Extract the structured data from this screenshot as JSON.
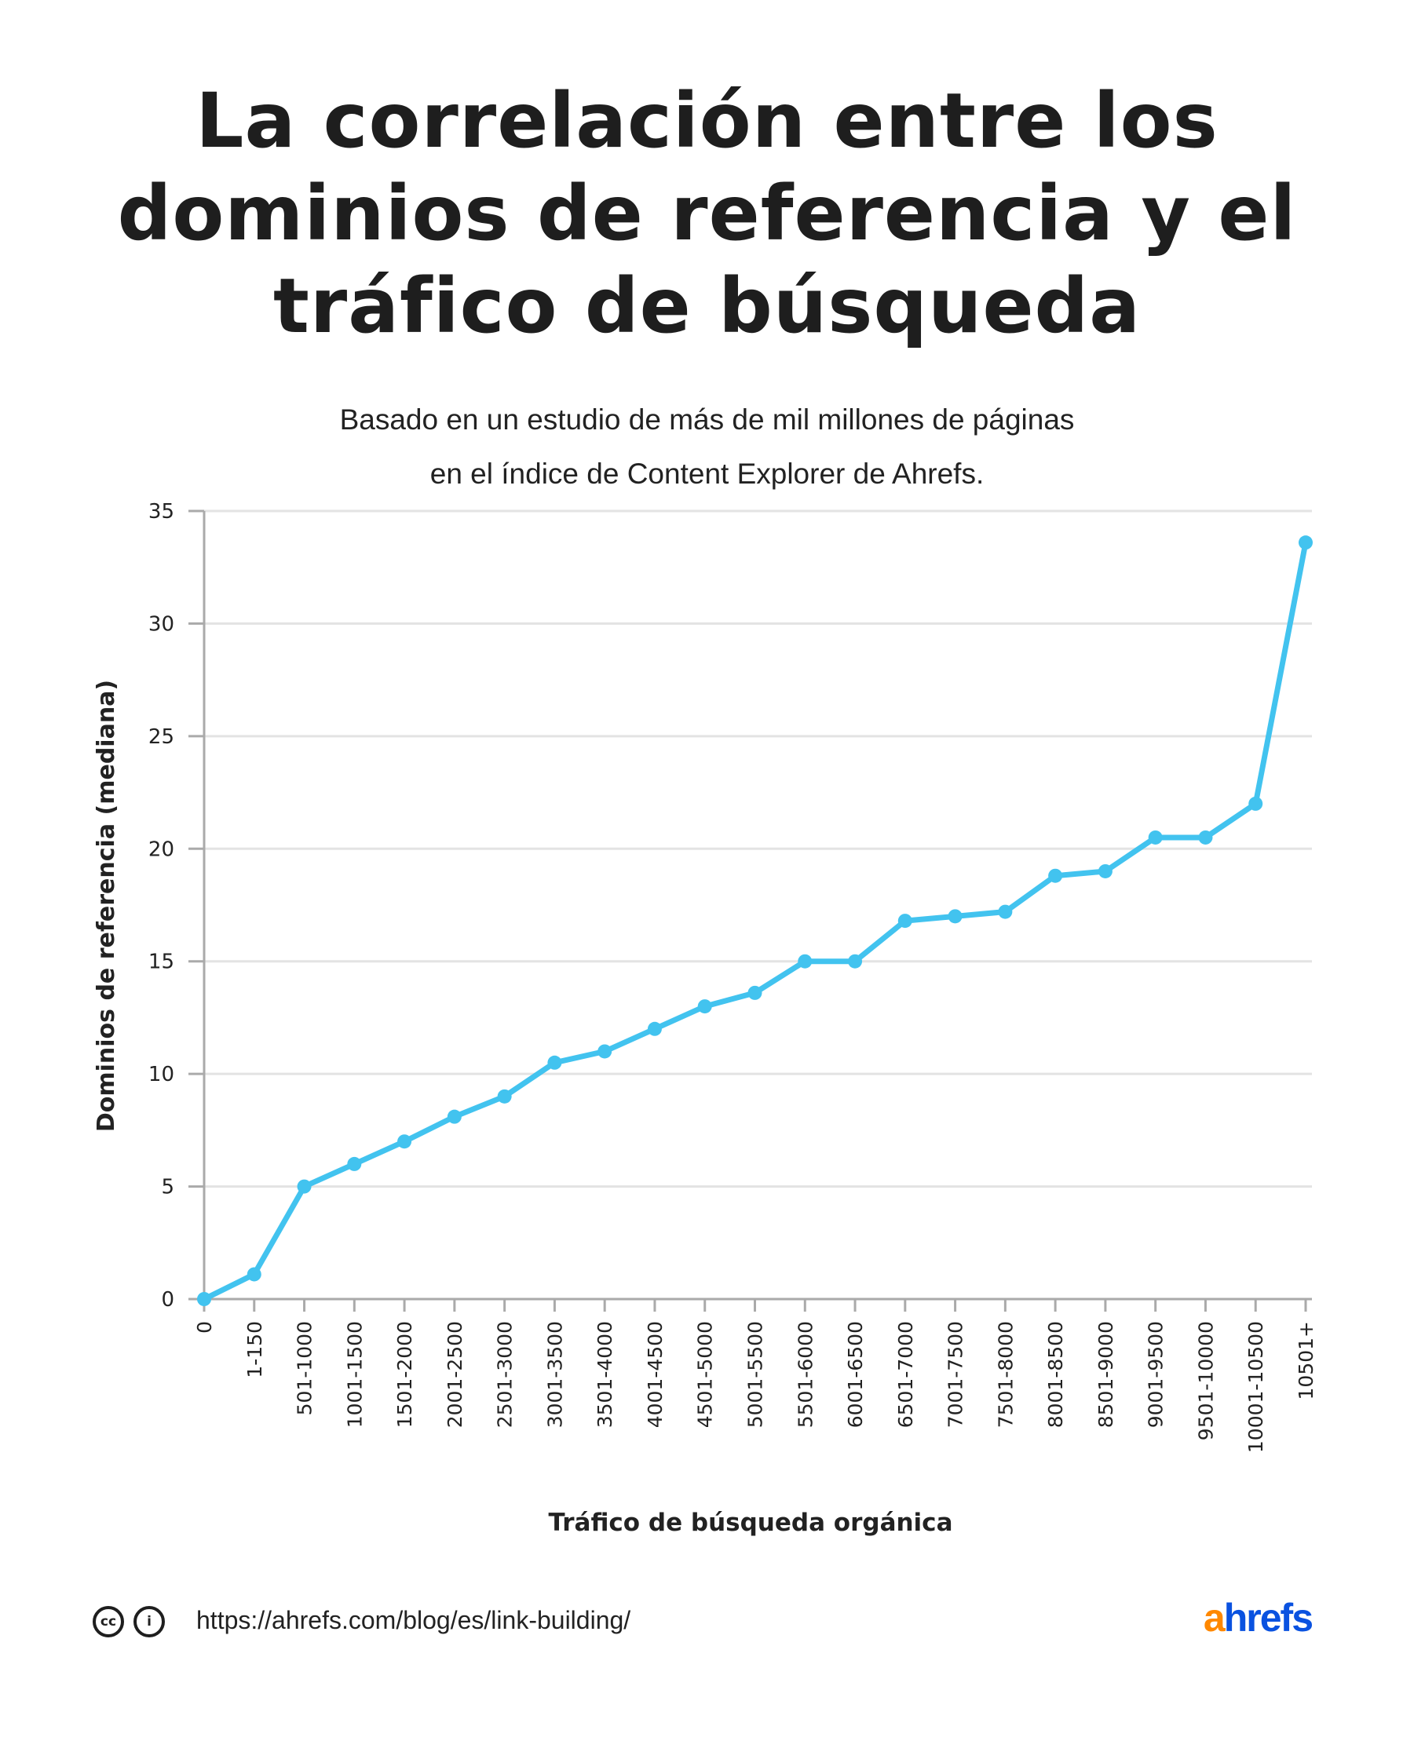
{
  "chart_data": {
    "type": "line",
    "title": "La correlación entre los dominios de referencia y el tráfico de búsqueda",
    "subtitle": [
      "Basado en un estudio de más de mil millones de páginas",
      "en el índice de Content Explorer de Ahrefs."
    ],
    "xlabel": "Tráfico de búsqueda orgánica",
    "ylabel": "Dominios de referencia (mediana)",
    "ylim": [
      0,
      35
    ],
    "yticks": [
      0,
      5,
      10,
      15,
      20,
      25,
      30,
      35
    ],
    "grid": "horizontal",
    "line_color": "#42c3ef",
    "categories": [
      "0",
      "1-150",
      "501-1000",
      "1001-1500",
      "1501-2000",
      "2001-2500",
      "2501-3000",
      "3001-3500",
      "3501-4000",
      "4001-4500",
      "4501-5000",
      "5001-5500",
      "5501-6000",
      "6001-6500",
      "6501-7000",
      "7001-7500",
      "7501-8000",
      "8001-8500",
      "8501-9000",
      "9001-9500",
      "9501-10000",
      "10001-10500",
      "10501+"
    ],
    "values": [
      0,
      1.1,
      5,
      6,
      7,
      8.1,
      9,
      10.5,
      11,
      12,
      13,
      13.6,
      15,
      15,
      16.8,
      17,
      17.2,
      18.8,
      19,
      20.5,
      20.5,
      22,
      33.6
    ]
  },
  "footer": {
    "url": "https://ahrefs.com/blog/es/link-building/",
    "license_icons": [
      "cc-icon",
      "attribution-icon"
    ],
    "logo": {
      "a": "a",
      "rest": "hrefs",
      "a_color": "#ff8800",
      "rest_color": "#0a52e0"
    }
  }
}
